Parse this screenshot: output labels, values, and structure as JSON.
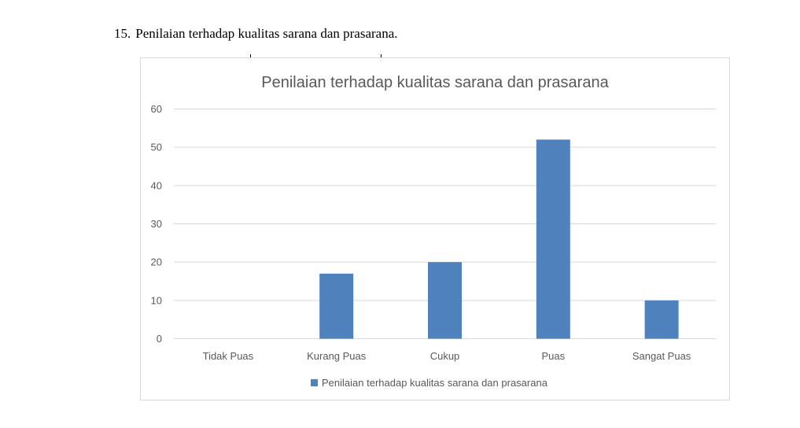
{
  "document": {
    "heading_number": "15.",
    "heading_text": "Penilaian terhadap kualitas sarana dan prasarana."
  },
  "colors": {
    "bar": "#4f81bd",
    "grid": "#d9d9d9",
    "text": "#595959",
    "frame": "#d9d9d9"
  },
  "chart_data": {
    "type": "bar",
    "title": "Penilaian terhadap kualitas sarana dan prasarana",
    "xlabel": "",
    "ylabel": "",
    "categories": [
      "Tidak Puas",
      "Kurang Puas",
      "Cukup",
      "Puas",
      "Sangat Puas"
    ],
    "series": [
      {
        "name": "Penilaian terhadap kualitas sarana dan prasarana",
        "values": [
          0,
          17,
          20,
          52,
          10
        ]
      }
    ],
    "ylim": [
      0,
      60
    ],
    "yticks": [
      0,
      10,
      20,
      30,
      40,
      50,
      60
    ],
    "grid": true,
    "legend_position": "bottom"
  }
}
